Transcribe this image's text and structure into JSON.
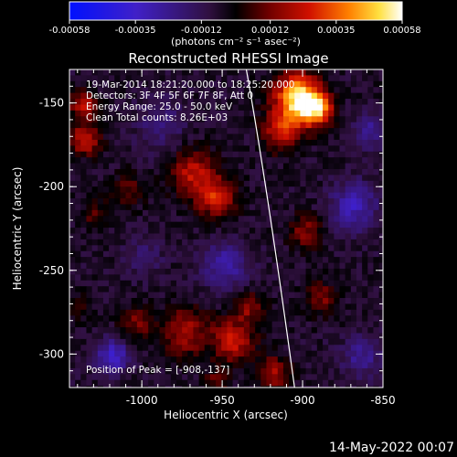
{
  "chart_data": {
    "type": "heatmap",
    "title": "Reconstructed RHESSI Image",
    "xlabel": "Heliocentric X (arcsec)",
    "ylabel": "Heliocentric Y (arcsec)",
    "xlim": [
      -1045,
      -850
    ],
    "ylim": [
      -320,
      -130
    ],
    "x_ticks": [
      -1000,
      -950,
      -900,
      -850
    ],
    "y_ticks": [
      -150,
      -200,
      -250,
      -300
    ],
    "x_tick_labels": [
      "-1000",
      "-950",
      "-900",
      "-850"
    ],
    "y_tick_labels": [
      "-150",
      "-200",
      "-250",
      "-300"
    ],
    "colorbar": {
      "min": -0.00058,
      "max": 0.00058,
      "ticks": [
        -0.00058,
        -0.00035,
        -0.00012,
        0.00012,
        0.00035,
        0.00058
      ],
      "tick_labels": [
        "-0.00058",
        "-0.00035",
        "-0.00012",
        "0.00012",
        "0.00035",
        "0.00058"
      ],
      "units_label": "(photons cm⁻² s⁻¹ asec⁻²)"
    },
    "info_lines": [
      "19-Mar-2014 18:21:20.000 to 18:25:20.000",
      "Detectors: 3F 4F 5F 6F 7F 8F, Att 0",
      "Energy Range: 25.0 - 50.0 keV",
      "Clean     Total counts: 8.26E+03"
    ],
    "peak_label": "Position of Peak = [-908,-137]",
    "limb_curve": [
      [
        -935,
        -130
      ],
      [
        -922,
        -200
      ],
      [
        -905,
        -320
      ]
    ],
    "blobs": [
      {
        "x": -905,
        "y": -145,
        "r": 14,
        "v": 0.00058
      },
      {
        "x": -893,
        "y": -152,
        "r": 10,
        "v": 0.00045
      },
      {
        "x": -915,
        "y": -165,
        "r": 12,
        "v": 0.0003
      },
      {
        "x": -1038,
        "y": -150,
        "r": 8,
        "v": 0.0003
      },
      {
        "x": -1037,
        "y": -170,
        "r": 9,
        "v": 0.00032
      },
      {
        "x": -970,
        "y": -190,
        "r": 14,
        "v": 0.00028
      },
      {
        "x": -955,
        "y": -205,
        "r": 12,
        "v": 0.0003
      },
      {
        "x": -1010,
        "y": -200,
        "r": 10,
        "v": 0.00015
      },
      {
        "x": -1030,
        "y": -215,
        "r": 9,
        "v": 0.00014
      },
      {
        "x": -900,
        "y": -225,
        "r": 10,
        "v": 0.0002
      },
      {
        "x": -890,
        "y": -265,
        "r": 10,
        "v": 0.00018
      },
      {
        "x": -935,
        "y": -270,
        "r": 9,
        "v": 0.0002
      },
      {
        "x": -975,
        "y": -285,
        "r": 14,
        "v": 0.00025
      },
      {
        "x": -945,
        "y": -290,
        "r": 13,
        "v": 0.0003
      },
      {
        "x": -1005,
        "y": -280,
        "r": 10,
        "v": 0.00018
      },
      {
        "x": -920,
        "y": -310,
        "r": 10,
        "v": 0.00025
      },
      {
        "x": -955,
        "y": -315,
        "r": 8,
        "v": 0.00015
      },
      {
        "x": -1040,
        "y": -270,
        "r": 8,
        "v": 0.0001
      },
      {
        "x": -950,
        "y": -245,
        "r": 14,
        "v": -0.00022
      },
      {
        "x": -1020,
        "y": -300,
        "r": 10,
        "v": -0.0003
      },
      {
        "x": -870,
        "y": -210,
        "r": 14,
        "v": -0.00025
      },
      {
        "x": -860,
        "y": -165,
        "r": 10,
        "v": -0.0002
      },
      {
        "x": -990,
        "y": -160,
        "r": 16,
        "v": -0.00012
      },
      {
        "x": -865,
        "y": -300,
        "r": 12,
        "v": -0.00018
      },
      {
        "x": -1000,
        "y": -240,
        "r": 12,
        "v": -0.0001
      }
    ]
  },
  "footer": {
    "timestamp": "14-May-2022 00:07"
  }
}
